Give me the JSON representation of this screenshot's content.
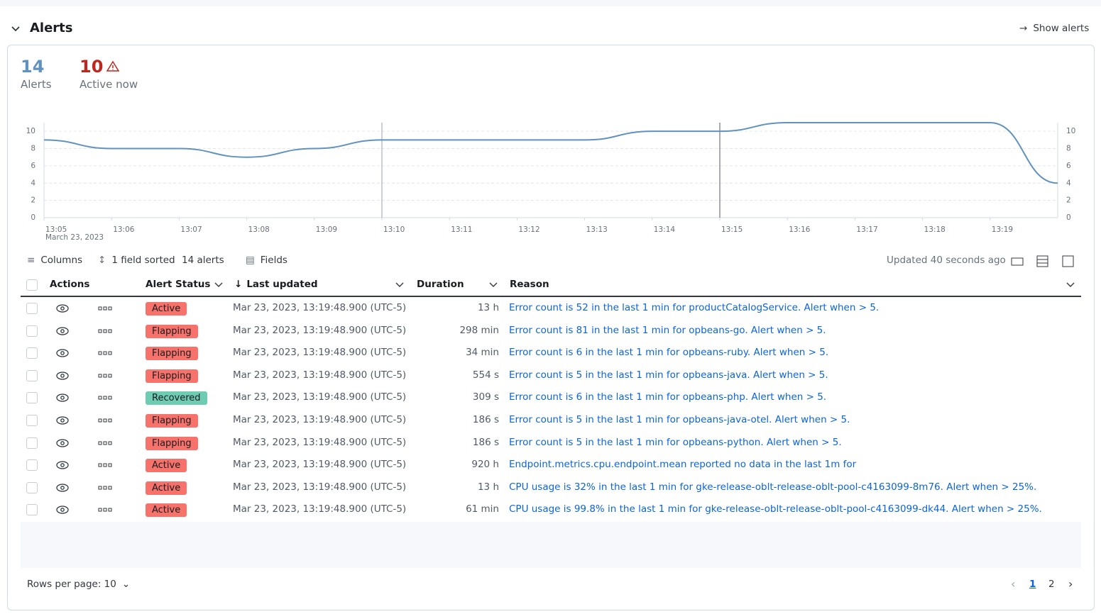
{
  "header": {
    "title": "Alerts",
    "show_alerts": "Show alerts"
  },
  "stats": {
    "total": {
      "value": 14,
      "label": "Alerts"
    },
    "active": {
      "value": 10,
      "label": "Active now"
    }
  },
  "chart_data": {
    "type": "line",
    "subtitle": "March 23, 2023",
    "categories": [
      "13:05",
      "13:06",
      "13:07",
      "13:08",
      "13:09",
      "13:10",
      "13:11",
      "13:12",
      "13:13",
      "13:14",
      "13:15",
      "13:16",
      "13:17",
      "13:18",
      "13:19",
      null
    ],
    "values": [
      9,
      8,
      8,
      7,
      8,
      9,
      9,
      9,
      9,
      10,
      10,
      11,
      11,
      11,
      11,
      4
    ],
    "color": "#6092c0",
    "ylim": [
      0,
      11
    ],
    "yticks": [
      0,
      2,
      4,
      6,
      8,
      10
    ],
    "y2lim": [
      0,
      11
    ],
    "y2ticks": [
      0,
      2,
      4,
      6,
      8,
      10
    ],
    "grid": true
  },
  "toolbar": {
    "columns": "Columns",
    "sorted": "1 field sorted",
    "count": "14 alerts",
    "fields": "Fields",
    "updated": "Updated 40 seconds ago"
  },
  "table": {
    "headers": [
      "Actions",
      "Alert Status",
      "Last updated",
      "Duration",
      "Reason"
    ],
    "status_colors": {
      "Active": "#f6726a",
      "Flapping": "#f6726a",
      "Recovered": "#6dccb1"
    },
    "rows": [
      [
        "Active",
        "Mar 23, 2023, 13:19:48.900 (UTC-5)",
        "13 h",
        "Error count is 52 in the last 1 min for productCatalogService. Alert when > 5."
      ],
      [
        "Flapping",
        "Mar 23, 2023, 13:19:48.900 (UTC-5)",
        "298 min",
        "Error count is 81 in the last 1 min for opbeans-go. Alert when > 5."
      ],
      [
        "Flapping",
        "Mar 23, 2023, 13:19:48.900 (UTC-5)",
        "34 min",
        "Error count is 6 in the last 1 min for opbeans-ruby. Alert when > 5."
      ],
      [
        "Flapping",
        "Mar 23, 2023, 13:19:48.900 (UTC-5)",
        "554 s",
        "Error count is 5 in the last 1 min for opbeans-java. Alert when > 5."
      ],
      [
        "Recovered",
        "Mar 23, 2023, 13:19:48.900 (UTC-5)",
        "309 s",
        "Error count is 6 in the last 1 min for opbeans-php. Alert when > 5."
      ],
      [
        "Flapping",
        "Mar 23, 2023, 13:19:48.900 (UTC-5)",
        "186 s",
        "Error count is 5 in the last 1 min for opbeans-java-otel. Alert when > 5."
      ],
      [
        "Flapping",
        "Mar 23, 2023, 13:19:48.900 (UTC-5)",
        "186 s",
        "Error count is 5 in the last 1 min for opbeans-python. Alert when > 5."
      ],
      [
        "Active",
        "Mar 23, 2023, 13:19:48.900 (UTC-5)",
        "920 h",
        "Endpoint.metrics.cpu.endpoint.mean reported no data in the last 1m for"
      ],
      [
        "Active",
        "Mar 23, 2023, 13:19:48.900 (UTC-5)",
        "13 h",
        "CPU usage is 32% in the last 1 min for gke-release-oblt-release-oblt-pool-c4163099-8m76. Alert when > 25%."
      ],
      [
        "Active",
        "Mar 23, 2023, 13:19:48.900 (UTC-5)",
        "61 min",
        "CPU usage is 99.8% in the last 1 min for gke-release-oblt-release-oblt-pool-c4163099-dk44. Alert when > 25%."
      ]
    ]
  },
  "footer": {
    "rows_per_page": "Rows per page: 10",
    "pages": [
      "1",
      "2"
    ]
  }
}
